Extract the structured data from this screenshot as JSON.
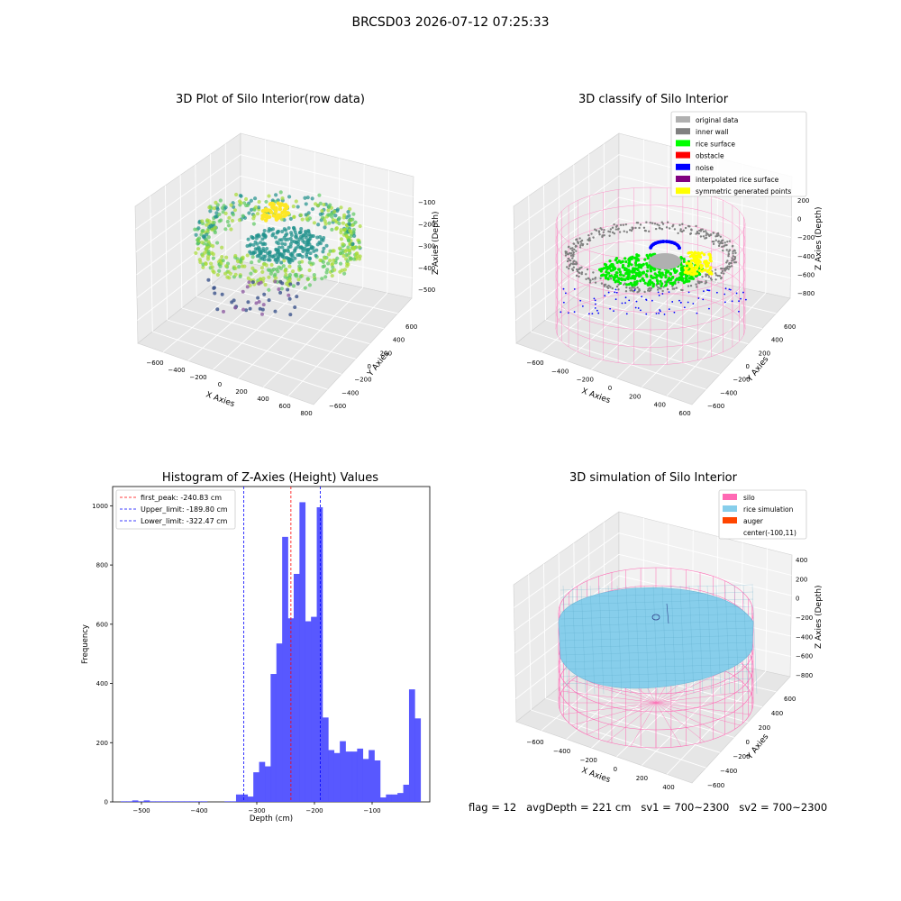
{
  "figure": {
    "title": "BRCSD03 2026-07-12 07:25:33",
    "footer": "flag = 12   avgDepth = 221 cm   sv1 = 700~2300   sv2 = 700~2300"
  },
  "chart_data": [
    {
      "type": "scatter3d",
      "title": "3D Plot of Silo Interior(row data)",
      "xlabel": "X Axies",
      "ylabel": "Y Axies",
      "zlabel": "Z Axies (Depth)",
      "x_ticks": [
        -600,
        -400,
        -200,
        0,
        200,
        400,
        600,
        800
      ],
      "y_ticks": [
        -600,
        -400,
        -200,
        0,
        200,
        400,
        600
      ],
      "z_ticks": [
        -100,
        -200,
        -300,
        -400,
        -500
      ],
      "xlim": [
        -700,
        800
      ],
      "ylim": [
        -600,
        700
      ],
      "zlim": [
        -550,
        -50
      ],
      "colormap": "viridis",
      "grid": true
    },
    {
      "type": "scatter3d",
      "title": "3D classify of Silo Interior",
      "xlabel": "X Axies",
      "ylabel": "Y Axies",
      "zlabel": "Z Axies (Depth)",
      "x_ticks": [
        -600,
        -400,
        -200,
        0,
        200,
        400,
        600
      ],
      "y_ticks": [
        -600,
        -400,
        -200,
        0,
        200,
        400,
        600
      ],
      "z_ticks": [
        200,
        0,
        -200,
        -400,
        -600,
        -800
      ],
      "legend_position": "top-right",
      "legend": [
        {
          "label": "original data",
          "color": "#b0b0b0"
        },
        {
          "label": "inner wall",
          "color": "#808080"
        },
        {
          "label": "rice surface",
          "color": "#00ff00"
        },
        {
          "label": "obstacle",
          "color": "#ff0000"
        },
        {
          "label": "noise",
          "color": "#0000ff"
        },
        {
          "label": "interpolated rice surface",
          "color": "#800080"
        },
        {
          "label": "symmetric generated points",
          "color": "#ffff00"
        }
      ],
      "grid": true
    },
    {
      "type": "bar",
      "subtype": "histogram",
      "title": "Histogram of Z-Axies (Height) Values",
      "xlabel": "Depth (cm)",
      "ylabel": "Frequency",
      "xlim": [
        -550,
        0
      ],
      "ylim": [
        0,
        1065
      ],
      "x_ticks": [
        -500,
        -400,
        -300,
        -200,
        -100
      ],
      "y_ticks": [
        0,
        200,
        400,
        600,
        800,
        1000
      ],
      "bar_color": "#4f4fff",
      "bin_start": -536,
      "bin_width": 10,
      "values": [
        2,
        2,
        5,
        2,
        5,
        2,
        2,
        2,
        2,
        2,
        2,
        2,
        2,
        2,
        2,
        0,
        0,
        0,
        2,
        2,
        25,
        25,
        18,
        100,
        135,
        120,
        432,
        535,
        895,
        620,
        770,
        1012,
        610,
        625,
        995,
        285,
        175,
        165,
        205,
        170,
        170,
        180,
        145,
        175,
        140,
        15,
        25,
        25,
        30,
        58,
        380,
        282
      ],
      "lines": [
        {
          "label": "first_peak: -240.83 cm",
          "x": -240.83,
          "color": "#ff0000"
        },
        {
          "label": "Upper_limit: -189.80 cm",
          "x": -189.8,
          "color": "#0000ff"
        },
        {
          "label": "Lower_limit: -322.47 cm",
          "x": -322.47,
          "color": "#0000ff"
        }
      ],
      "legend_position": "top-left"
    },
    {
      "type": "surface3d",
      "title": "3D simulation of Silo Interior",
      "xlabel": "X Axies",
      "ylabel": "Y Axies",
      "zlabel": "Z Axies (Depth)",
      "x_ticks": [
        -600,
        -400,
        -200,
        0,
        200,
        400
      ],
      "y_ticks": [
        -600,
        -400,
        -200,
        0,
        200,
        400,
        600
      ],
      "z_ticks": [
        400,
        200,
        0,
        -200,
        -400,
        -600,
        -800
      ],
      "legend_position": "top-right",
      "legend": [
        {
          "label": "silo",
          "color": "#ff69b4"
        },
        {
          "label": "rice simulation",
          "color": "#87ceeb"
        },
        {
          "label": "auger",
          "color": "#ff4500"
        },
        {
          "label": "center(-100,11)",
          "color": ""
        }
      ],
      "grid": true
    }
  ]
}
